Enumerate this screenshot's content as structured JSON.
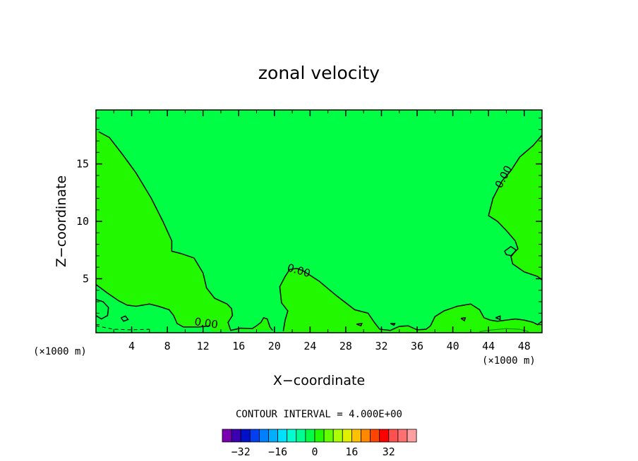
{
  "chart_data": {
    "type": "contour",
    "title": "zonal velocity",
    "xlabel": "X−coordinate",
    "ylabel": "Z−coordinate",
    "x_units": "(×1000 m)",
    "x_units_right": "(×1000 m)",
    "xlim": [
      0,
      50
    ],
    "ylim": [
      0.3,
      19.7
    ],
    "x_ticks": [
      4,
      8,
      12,
      16,
      20,
      24,
      28,
      32,
      36,
      40,
      44,
      48
    ],
    "x_tick_labels": [
      "4",
      "8",
      "12",
      "16",
      "20",
      "24",
      "28",
      "32",
      "36",
      "40",
      "44",
      "48"
    ],
    "y_ticks": [
      5,
      10,
      15
    ],
    "y_tick_labels": [
      "5",
      "10",
      "15"
    ],
    "contour_interval_text": "CONTOUR INTERVAL = 4.000E+00",
    "contour_labels": [
      "0.00",
      "0.00",
      "0.00"
    ],
    "fill_colors": {
      "background_range": "#00ff44",
      "zero_positive_range": "#22f800"
    },
    "contours": [
      {
        "level": 0,
        "points": [
          [
            0.3,
            17.8
          ],
          [
            1.5,
            17.3
          ],
          [
            3,
            15.8
          ],
          [
            4.5,
            14.2
          ],
          [
            6.2,
            12
          ],
          [
            7.5,
            10
          ],
          [
            8.5,
            8.3
          ],
          [
            8.5,
            7.4
          ],
          [
            9.5,
            7.2
          ],
          [
            11,
            6.8
          ],
          [
            12,
            5.5
          ],
          [
            12.4,
            4.2
          ],
          [
            13.3,
            3.3
          ],
          [
            14.7,
            2.8
          ],
          [
            15.2,
            2.4
          ],
          [
            15.3,
            1.8
          ],
          [
            14.8,
            1.2
          ],
          [
            15.1,
            0.5
          ],
          [
            16.2,
            0.7
          ],
          [
            17.5,
            0.65
          ],
          [
            18,
            0.9
          ],
          [
            18.5,
            1.2
          ],
          [
            18.8,
            1.6
          ],
          [
            19.2,
            1.5
          ],
          [
            19.5,
            0.8
          ],
          [
            19.8,
            0.5
          ]
        ]
      },
      {
        "level": 0,
        "points": [
          [
            0,
            4.5
          ],
          [
            1.2,
            3.8
          ],
          [
            2.5,
            3.1
          ],
          [
            3.5,
            2.7
          ],
          [
            4.5,
            2.6
          ],
          [
            6,
            2.8
          ],
          [
            7,
            2.6
          ],
          [
            8.2,
            2.3
          ],
          [
            8.7,
            1.8
          ],
          [
            9.1,
            1.1
          ],
          [
            9.8,
            0.8
          ],
          [
            11.5,
            0.8
          ],
          [
            12.8,
            0.9
          ]
        ]
      },
      {
        "level": 0,
        "points": [
          [
            21,
            0.45
          ],
          [
            21.2,
            1.4
          ],
          [
            21.5,
            2.2
          ],
          [
            20.8,
            2.9
          ],
          [
            20.6,
            4.3
          ],
          [
            21.2,
            5.2
          ],
          [
            21.7,
            5.8
          ],
          [
            22.5,
            5.9
          ],
          [
            23.2,
            5.7
          ],
          [
            25,
            4.8
          ],
          [
            27,
            3.5
          ],
          [
            29,
            2.3
          ],
          [
            30.5,
            2.0
          ],
          [
            31.2,
            1.2
          ],
          [
            31.8,
            0.6
          ],
          [
            33,
            0.5
          ],
          [
            34,
            0.85
          ],
          [
            35,
            0.9
          ],
          [
            36,
            0.55
          ],
          [
            37,
            0.6
          ],
          [
            37.5,
            0.9
          ],
          [
            38,
            1.7
          ],
          [
            39,
            2.2
          ],
          [
            40.5,
            2.6
          ],
          [
            42,
            2.8
          ],
          [
            43,
            2.3
          ],
          [
            43.5,
            1.6
          ],
          [
            44.2,
            1.4
          ],
          [
            45,
            1.3
          ],
          [
            46,
            1.4
          ],
          [
            47,
            1.5
          ],
          [
            48,
            1.4
          ],
          [
            49,
            1.2
          ],
          [
            49.5,
            1.0
          ],
          [
            50,
            1.3
          ]
        ]
      },
      {
        "level": 0,
        "points": [
          [
            50,
            17.5
          ],
          [
            49,
            16.6
          ],
          [
            47.5,
            15.6
          ],
          [
            46.5,
            14.4
          ],
          [
            45.5,
            13.5
          ],
          [
            44.5,
            12
          ],
          [
            44,
            10.5
          ],
          [
            45,
            10
          ],
          [
            46,
            9.2
          ],
          [
            47,
            8.3
          ],
          [
            47.3,
            7.6
          ],
          [
            46.5,
            7.0
          ],
          [
            46.7,
            6.3
          ],
          [
            48,
            5.6
          ],
          [
            49.5,
            5.2
          ],
          [
            50,
            4.9
          ]
        ]
      },
      {
        "level": 0,
        "points": [
          [
            0,
            3.2
          ],
          [
            0.8,
            3.0
          ],
          [
            1.4,
            2.5
          ],
          [
            1.3,
            1.8
          ],
          [
            0.6,
            1.5
          ],
          [
            0,
            1.8
          ]
        ]
      },
      {
        "level": 0,
        "points": [
          [
            45.8,
            7.4
          ],
          [
            46.5,
            7.8
          ],
          [
            47.1,
            7.5
          ],
          [
            46.6,
            7.0
          ],
          [
            46,
            7.1
          ],
          [
            45.8,
            7.4
          ]
        ]
      },
      {
        "level": 0,
        "points": [
          [
            2.8,
            1.6
          ],
          [
            3.3,
            1.75
          ],
          [
            3.6,
            1.45
          ],
          [
            3.1,
            1.3
          ],
          [
            2.8,
            1.6
          ]
        ]
      },
      {
        "level": 0,
        "points": [
          [
            40.9,
            1.55
          ],
          [
            41.4,
            1.6
          ],
          [
            41.3,
            1.35
          ],
          [
            40.9,
            1.55
          ]
        ]
      },
      {
        "level": 0,
        "points": [
          [
            44.8,
            1.6
          ],
          [
            45.3,
            1.75
          ],
          [
            45.3,
            1.45
          ],
          [
            44.8,
            1.6
          ]
        ]
      },
      {
        "level": 0,
        "points": [
          [
            29.2,
            1.05
          ],
          [
            29.8,
            1.1
          ],
          [
            29.7,
            0.9
          ],
          [
            29.2,
            1.05
          ]
        ]
      },
      {
        "level": 0,
        "points": [
          [
            33,
            1.1
          ],
          [
            33.5,
            1.1
          ],
          [
            33.4,
            0.95
          ],
          [
            33,
            1.1
          ]
        ]
      },
      {
        "level": -4,
        "dashed": true,
        "points": [
          [
            0,
            0.9
          ],
          [
            2,
            0.6
          ],
          [
            4,
            0.55
          ],
          [
            6,
            0.6
          ]
        ]
      },
      {
        "level": 4,
        "points": [
          [
            43,
            0.4
          ],
          [
            44.5,
            0.55
          ],
          [
            46,
            0.65
          ],
          [
            47.5,
            0.6
          ],
          [
            48.5,
            0.4
          ]
        ]
      }
    ],
    "colorbar": {
      "colors": [
        "#7a00b2",
        "#3a00b2",
        "#0010c8",
        "#0040f0",
        "#0080ff",
        "#00b0ff",
        "#00e0ff",
        "#00ffd0",
        "#00ff90",
        "#00ff44",
        "#22f800",
        "#66ff00",
        "#aaff00",
        "#e0f000",
        "#ffc000",
        "#ff8800",
        "#ff4400",
        "#ff0000",
        "#ff5050",
        "#ff7070",
        "#ffa0a0"
      ],
      "tick_values": [
        -32,
        -16,
        0,
        16,
        32
      ],
      "tick_labels": [
        "−32",
        "−16",
        "0",
        "16",
        "32"
      ]
    }
  }
}
